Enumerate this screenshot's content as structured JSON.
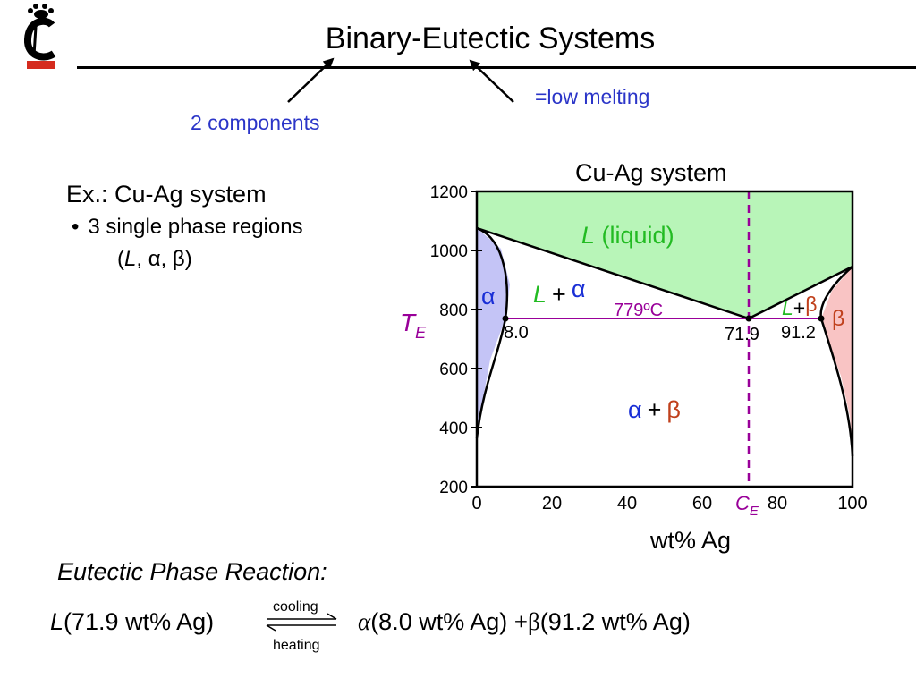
{
  "slide": {
    "title": "Binary-Eutectic Systems",
    "note_components": "2 components",
    "note_low_melting": "=low melting"
  },
  "example": {
    "heading": "Ex.:  Cu-Ag system",
    "bullet_marker": "•",
    "bullet_text": "3 single phase regions",
    "phases_prefix": "(",
    "phases_L": "L",
    "phases_rest": ", α, β)"
  },
  "diagram": {
    "title": "Cu-Ag system",
    "x_axis_label": "wt% Ag",
    "x_ticks": [
      "0",
      "20",
      "40",
      "60",
      "80",
      "100"
    ],
    "y_ticks": [
      "200",
      "400",
      "600",
      "800",
      "1000",
      "1200"
    ],
    "x_range": [
      0,
      100
    ],
    "y_range": [
      200,
      1200
    ],
    "liquid_label_symbol": "L",
    "liquid_label_text": " (liquid)",
    "alpha_label": "α",
    "L_alpha_symbol": "L",
    "L_alpha_plus": "+",
    "L_alpha_phase": "α",
    "L_beta_symbol": "L",
    "L_beta_plus": "+",
    "L_beta_phase": "β",
    "beta_label": "β",
    "alpha_beta_alpha": "α",
    "alpha_beta_plus": "+",
    "alpha_beta_beta": "β",
    "eutectic_temp_label": "779ºC",
    "alpha_limit_label": "8.0",
    "eutectic_comp_label": "71.9",
    "beta_limit_label": "91.2",
    "TE_main": "T",
    "TE_sub": "E",
    "CE_main": "C",
    "CE_sub": "E",
    "colors": {
      "liquid": "#b8f5b8",
      "alpha": "#c4c4f6",
      "beta": "#f9c4c4",
      "eutectic_line": "#990099",
      "phase_green": "#22bb22",
      "phase_blue": "#1a2fd6",
      "phase_red": "#c0401c",
      "purple": "#990099"
    }
  },
  "reaction": {
    "title": "Eutectic Phase Reaction:",
    "left_L": "L",
    "left_rest": "(71.9 wt% Ag)",
    "cooling": "cooling",
    "heating": "heating",
    "alpha": "α",
    "alpha_rest": "(8.0 wt% Ag)",
    "plus": "+",
    "beta": "β",
    "beta_rest": "(91.2 wt% Ag)"
  },
  "chart_data": {
    "type": "phase-diagram",
    "title": "Cu-Ag system",
    "xlabel": "wt% Ag",
    "ylabel": "",
    "xlim": [
      0,
      100
    ],
    "ylim": [
      200,
      1200
    ],
    "eutectic": {
      "temperature": 779,
      "composition": 71.9,
      "alpha_limit": 8.0,
      "beta_limit": 91.2
    },
    "regions": [
      "L (liquid)",
      "α",
      "L + α",
      "L+β",
      "β",
      "α + β"
    ]
  }
}
